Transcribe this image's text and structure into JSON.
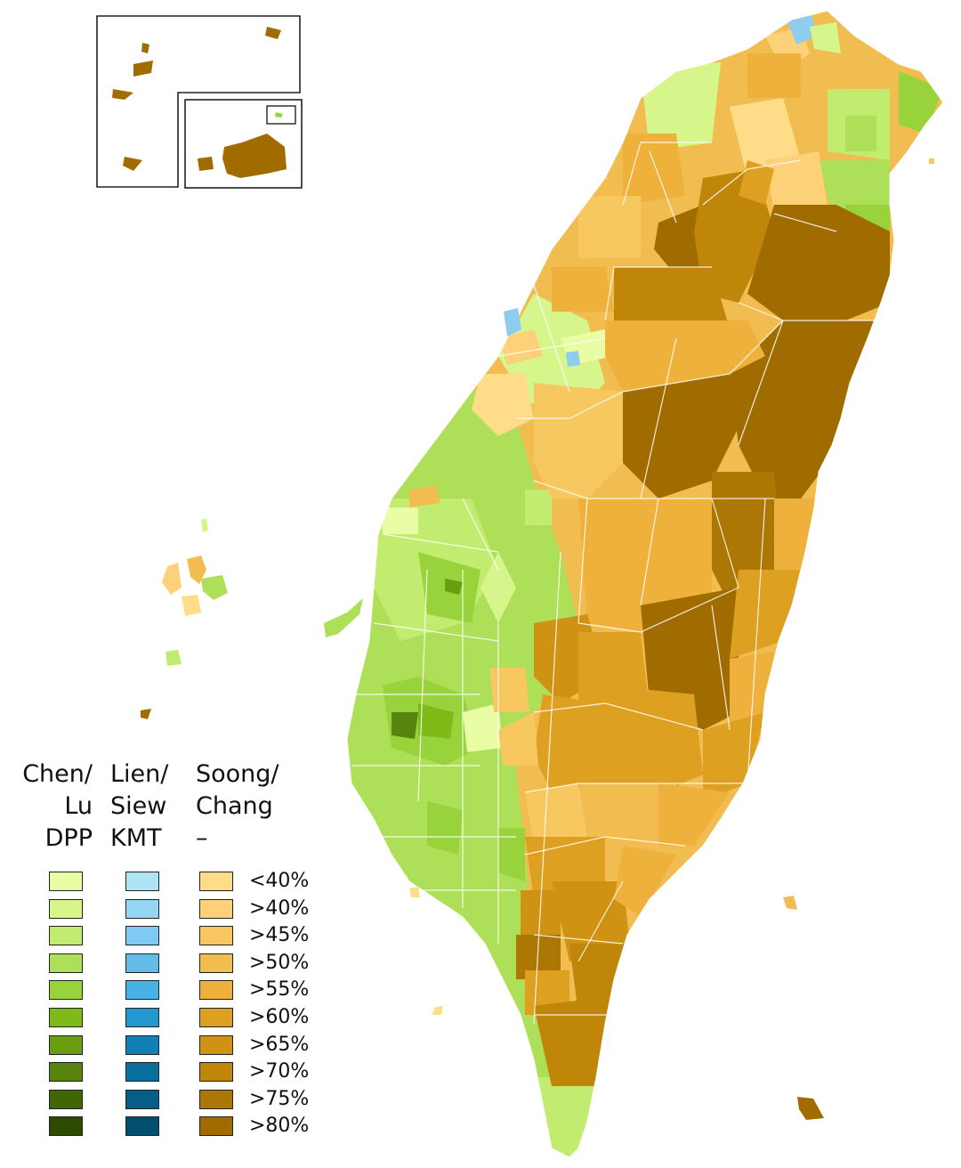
{
  "legend": {
    "columns": [
      {
        "name": "Chen/",
        "name2": "Lu",
        "party": "DPP"
      },
      {
        "name": "Lien/",
        "name2": "Siew",
        "party": "KMT"
      },
      {
        "name": "Soong/",
        "name2": "Chang",
        "party": "–"
      }
    ],
    "thresholds": [
      "<40%",
      ">40%",
      ">45%",
      ">50%",
      ">55%",
      ">60%",
      ">65%",
      ">70%",
      ">75%",
      ">80%"
    ],
    "colors": {
      "dpp": [
        "#e9fda4",
        "#d6f68c",
        "#c2ec70",
        "#addf58",
        "#99d33c",
        "#7fba18",
        "#6a9e10",
        "#56840c",
        "#406606",
        "#2c4a02"
      ],
      "kmt": [
        "#aee4f3",
        "#95d7f2",
        "#7ecaf0",
        "#64bde9",
        "#48b2e6",
        "#2398d0",
        "#1380b5",
        "#0a6e9e",
        "#055e88",
        "#024e70"
      ],
      "pfp": [
        "#fedc88",
        "#fdd179",
        "#f7c860",
        "#f2bd50",
        "#eeb13c",
        "#dea020",
        "#cf9212",
        "#bf860a",
        "#ad7706",
        "#a06c00"
      ]
    }
  },
  "map": {
    "water": "#8fcdf0"
  }
}
